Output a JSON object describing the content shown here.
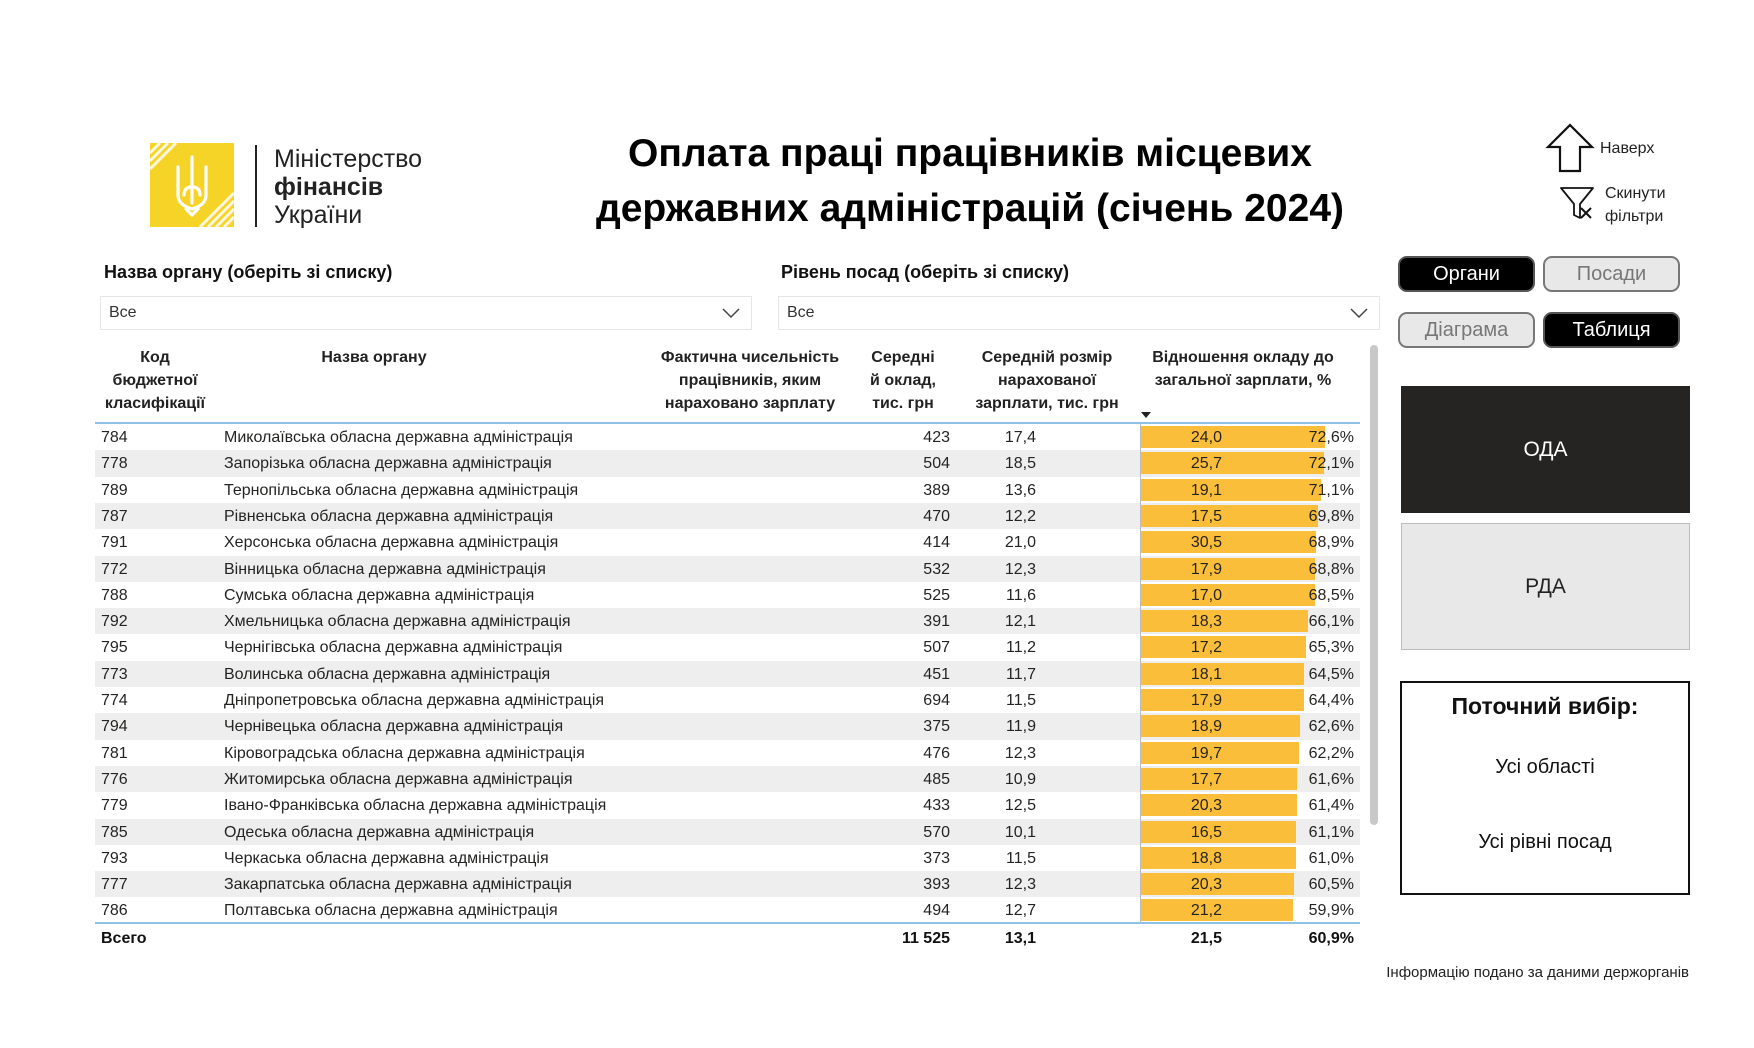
{
  "logo": {
    "line1": "Міністерство",
    "line2": "фінансів",
    "line3": "України",
    "color": "#f5d327"
  },
  "title_line1": "Оплата праці працівників місцевих",
  "title_line2": "державних адміністрацій (січень 2024)",
  "nav": {
    "up": "Наверх",
    "reset_line1": "Скинути",
    "reset_line2": "фільтри"
  },
  "filters": {
    "organ": {
      "label": "Назва органу",
      "hint": "(оберіть зі списку)",
      "value": "Все"
    },
    "level": {
      "label": "Рівень посад",
      "hint": "(оберіть зі списку)",
      "value": "Все"
    }
  },
  "toggles": {
    "organs": {
      "label": "Органи",
      "active": true
    },
    "positions": {
      "label": "Посади",
      "active": false
    },
    "diagram": {
      "label": "Діаграма",
      "active": false
    },
    "table": {
      "label": "Таблиця",
      "active": true
    }
  },
  "big_buttons": {
    "oda": "ОДА",
    "rda": "РДА"
  },
  "current": {
    "heading": "Поточний вибір:",
    "regions": "Усі області",
    "levels": "Усі рівні посад"
  },
  "table": {
    "headers": {
      "code": [
        "Код",
        "бюджетної",
        "класифікації"
      ],
      "name": "Назва органу",
      "count": [
        "Фактична чисельність",
        "працівників, яким",
        "нараховано зарплату"
      ],
      "salary": [
        "Середні",
        "й оклад,",
        "тис. грн"
      ],
      "wage": [
        "Середній розмір",
        "нарахованої",
        "зарплати, тис. грн"
      ],
      "ratio": [
        "Відношення окладу до",
        "загальної зарплати, %"
      ]
    },
    "bar_color": "#fbbe3b",
    "rows": [
      {
        "code": "784",
        "name": "Миколаївська обласна державна адміністрація",
        "count": "423",
        "salary": "17,4",
        "wage": "24,0",
        "ratio": "72,6%",
        "ratio_value": 72.6
      },
      {
        "code": "778",
        "name": "Запорізька обласна державна адміністрація",
        "count": "504",
        "salary": "18,5",
        "wage": "25,7",
        "ratio": "72,1%",
        "ratio_value": 72.1
      },
      {
        "code": "789",
        "name": "Тернопільська обласна державна адміністрація",
        "count": "389",
        "salary": "13,6",
        "wage": "19,1",
        "ratio": "71,1%",
        "ratio_value": 71.1
      },
      {
        "code": "787",
        "name": "Рівненська обласна державна адміністрація",
        "count": "470",
        "salary": "12,2",
        "wage": "17,5",
        "ratio": "69,8%",
        "ratio_value": 69.8
      },
      {
        "code": "791",
        "name": "Херсонська обласна державна адміністрація",
        "count": "414",
        "salary": "21,0",
        "wage": "30,5",
        "ratio": "68,9%",
        "ratio_value": 68.9
      },
      {
        "code": "772",
        "name": "Вінницька обласна державна адміністрація",
        "count": "532",
        "salary": "12,3",
        "wage": "17,9",
        "ratio": "68,8%",
        "ratio_value": 68.8
      },
      {
        "code": "788",
        "name": "Сумська обласна державна адміністрація",
        "count": "525",
        "salary": "11,6",
        "wage": "17,0",
        "ratio": "68,5%",
        "ratio_value": 68.5
      },
      {
        "code": "792",
        "name": "Хмельницька обласна державна адміністрація",
        "count": "391",
        "salary": "12,1",
        "wage": "18,3",
        "ratio": "66,1%",
        "ratio_value": 66.1
      },
      {
        "code": "795",
        "name": "Чернігівська обласна державна адміністрація",
        "count": "507",
        "salary": "11,2",
        "wage": "17,2",
        "ratio": "65,3%",
        "ratio_value": 65.3
      },
      {
        "code": "773",
        "name": "Волинська обласна державна адміністрація",
        "count": "451",
        "salary": "11,7",
        "wage": "18,1",
        "ratio": "64,5%",
        "ratio_value": 64.5
      },
      {
        "code": "774",
        "name": "Дніпропетровська обласна державна адміністрація",
        "count": "694",
        "salary": "11,5",
        "wage": "17,9",
        "ratio": "64,4%",
        "ratio_value": 64.4
      },
      {
        "code": "794",
        "name": "Чернівецька обласна державна адміністрація",
        "count": "375",
        "salary": "11,9",
        "wage": "18,9",
        "ratio": "62,6%",
        "ratio_value": 62.6
      },
      {
        "code": "781",
        "name": "Кіровоградська обласна державна адміністрація",
        "count": "476",
        "salary": "12,3",
        "wage": "19,7",
        "ratio": "62,2%",
        "ratio_value": 62.2
      },
      {
        "code": "776",
        "name": "Житомирська обласна державна адміністрація",
        "count": "485",
        "salary": "10,9",
        "wage": "17,7",
        "ratio": "61,6%",
        "ratio_value": 61.6
      },
      {
        "code": "779",
        "name": "Івано-Франківська обласна державна адміністрація",
        "count": "433",
        "salary": "12,5",
        "wage": "20,3",
        "ratio": "61,4%",
        "ratio_value": 61.4
      },
      {
        "code": "785",
        "name": "Одеська обласна державна адміністрація",
        "count": "570",
        "salary": "10,1",
        "wage": "16,5",
        "ratio": "61,1%",
        "ratio_value": 61.1
      },
      {
        "code": "793",
        "name": "Черкаська обласна державна адміністрація",
        "count": "373",
        "salary": "11,5",
        "wage": "18,8",
        "ratio": "61,0%",
        "ratio_value": 61.0
      },
      {
        "code": "777",
        "name": "Закарпатська обласна державна адміністрація",
        "count": "393",
        "salary": "12,3",
        "wage": "20,3",
        "ratio": "60,5%",
        "ratio_value": 60.5
      },
      {
        "code": "786",
        "name": "Полтавська обласна державна адміністрація",
        "count": "494",
        "salary": "12,7",
        "wage": "21,2",
        "ratio": "59,9%",
        "ratio_value": 59.9
      }
    ],
    "total": {
      "label": "Всего",
      "count": "11 525",
      "salary": "13,1",
      "wage": "21,5",
      "ratio": "60,9%"
    }
  },
  "footer": "Інформацію подано за даними держорганів"
}
